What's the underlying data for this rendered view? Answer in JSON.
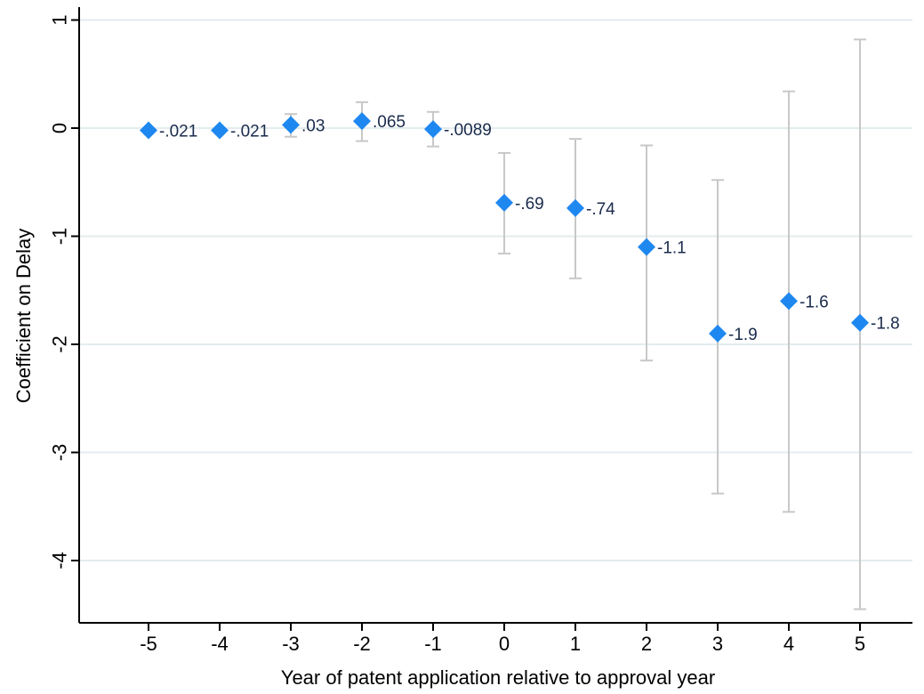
{
  "chart_data": {
    "type": "scatter",
    "xlabel": "Year of patent application relative to approval year",
    "ylabel": "Coefficient on Delay",
    "x_ticks": [
      -5,
      -4,
      -3,
      -2,
      -1,
      0,
      1,
      2,
      3,
      4,
      5
    ],
    "y_ticks": [
      1,
      0,
      -1,
      -2,
      -3,
      -4
    ],
    "xlim": [
      -6,
      6
    ],
    "ylim": [
      -4.6,
      1.1
    ],
    "grid": "horizontal",
    "marker_color": "#1f88f0",
    "errorbar_color": "#c8c8c8",
    "gridline_color": "#e3ecee",
    "points": [
      {
        "x": -5,
        "y": -0.021,
        "label": "-.021",
        "ci": [
          -0.021,
          -0.021
        ]
      },
      {
        "x": -4,
        "y": -0.021,
        "label": "-.021",
        "ci": [
          -0.021,
          -0.021
        ]
      },
      {
        "x": -3,
        "y": 0.03,
        "label": ".03",
        "ci": [
          -0.08,
          0.13
        ]
      },
      {
        "x": -2,
        "y": 0.065,
        "label": ".065",
        "ci": [
          -0.12,
          0.24
        ]
      },
      {
        "x": -1,
        "y": -0.0089,
        "label": "-.0089",
        "ci": [
          -0.17,
          0.15
        ]
      },
      {
        "x": 0,
        "y": -0.69,
        "label": "-.69",
        "ci": [
          -1.16,
          -0.23
        ]
      },
      {
        "x": 1,
        "y": -0.74,
        "label": "-.74",
        "ci": [
          -1.39,
          -0.1
        ]
      },
      {
        "x": 2,
        "y": -1.1,
        "label": "-1.1",
        "ci": [
          -2.15,
          -0.16
        ]
      },
      {
        "x": 3,
        "y": -1.9,
        "label": "-1.9",
        "ci": [
          -3.38,
          -0.48
        ]
      },
      {
        "x": 4,
        "y": -1.6,
        "label": "-1.6",
        "ci": [
          -3.55,
          0.34
        ]
      },
      {
        "x": 5,
        "y": -1.8,
        "label": "-1.8",
        "ci": [
          -4.45,
          0.82
        ]
      }
    ]
  }
}
